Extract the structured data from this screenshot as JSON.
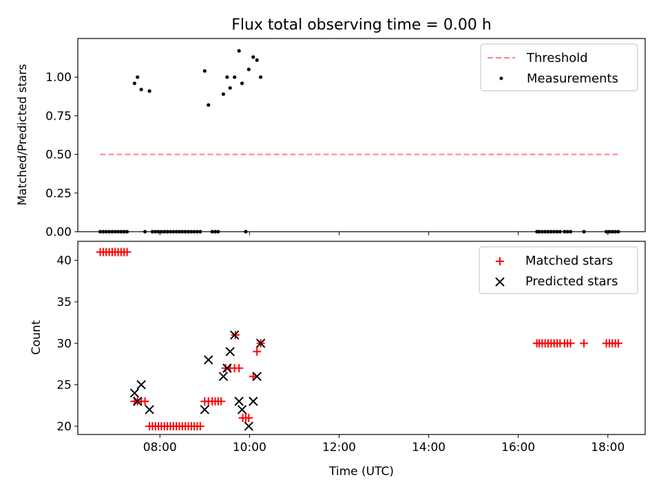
{
  "chart_data": [
    {
      "type": "scatter",
      "title": "Flux total observing time = 0.00 h",
      "xlabel": "",
      "ylabel": "Matched/Predicted stars",
      "xlim": [
        "06:10",
        "18:50"
      ],
      "ylim": [
        0,
        1.25
      ],
      "yticks": [
        0.0,
        0.25,
        0.5,
        0.75,
        1.0
      ],
      "ytick_labels": [
        "0.00",
        "0.25",
        "0.50",
        "0.75",
        "1.00"
      ],
      "legend_position": "top-right",
      "grid": false,
      "series": [
        {
          "name": "Threshold",
          "kind": "dashed-line",
          "color": "#ff7f7f",
          "x": [
            "06:40",
            "18:15"
          ],
          "y": [
            0.5,
            0.5
          ]
        },
        {
          "name": "Measurements",
          "kind": "dot",
          "color": "#000000",
          "points": [
            [
              "06:40",
              0
            ],
            [
              "06:44",
              0
            ],
            [
              "06:48",
              0
            ],
            [
              "06:52",
              0
            ],
            [
              "06:56",
              0
            ],
            [
              "07:00",
              0
            ],
            [
              "07:04",
              0
            ],
            [
              "07:08",
              0
            ],
            [
              "07:12",
              0
            ],
            [
              "07:16",
              0
            ],
            [
              "07:26",
              0.96
            ],
            [
              "07:30",
              1.0
            ],
            [
              "07:35",
              0.92
            ],
            [
              "07:40",
              0
            ],
            [
              "07:46",
              0.91
            ],
            [
              "07:50",
              0
            ],
            [
              "07:54",
              0
            ],
            [
              "07:58",
              0
            ],
            [
              "08:02",
              0
            ],
            [
              "08:06",
              0
            ],
            [
              "08:10",
              0
            ],
            [
              "08:14",
              0
            ],
            [
              "08:18",
              0
            ],
            [
              "08:22",
              0
            ],
            [
              "08:26",
              0
            ],
            [
              "08:30",
              0
            ],
            [
              "08:34",
              0
            ],
            [
              "08:38",
              0
            ],
            [
              "08:42",
              0
            ],
            [
              "08:46",
              0
            ],
            [
              "08:50",
              0
            ],
            [
              "08:54",
              0
            ],
            [
              "09:00",
              1.04
            ],
            [
              "09:05",
              0.82
            ],
            [
              "09:10",
              0
            ],
            [
              "09:14",
              0
            ],
            [
              "09:18",
              0
            ],
            [
              "09:25",
              0.89
            ],
            [
              "09:30",
              1.0
            ],
            [
              "09:34",
              0.93
            ],
            [
              "09:40",
              1.0
            ],
            [
              "09:46",
              1.17
            ],
            [
              "09:50",
              0.96
            ],
            [
              "09:55",
              0
            ],
            [
              "09:59",
              1.05
            ],
            [
              "10:05",
              1.13
            ],
            [
              "10:10",
              1.11
            ],
            [
              "10:15",
              1.0
            ],
            [
              "16:25",
              0
            ],
            [
              "16:28",
              0
            ],
            [
              "16:32",
              0
            ],
            [
              "16:36",
              0
            ],
            [
              "16:40",
              0
            ],
            [
              "16:44",
              0
            ],
            [
              "16:48",
              0
            ],
            [
              "16:52",
              0
            ],
            [
              "16:56",
              0
            ],
            [
              "17:02",
              0
            ],
            [
              "17:06",
              0
            ],
            [
              "17:10",
              0
            ],
            [
              "17:28",
              0
            ],
            [
              "17:58",
              0
            ],
            [
              "18:02",
              0
            ],
            [
              "18:06",
              0
            ],
            [
              "18:10",
              0
            ],
            [
              "18:14",
              0
            ]
          ]
        }
      ]
    },
    {
      "type": "scatter",
      "title": "",
      "xlabel": "Time (UTC)",
      "ylabel": "Count",
      "xlim": [
        "06:10",
        "18:50"
      ],
      "ylim": [
        19,
        42.3
      ],
      "xticks": [
        "08:00",
        "10:00",
        "12:00",
        "14:00",
        "16:00",
        "18:00"
      ],
      "yticks": [
        20,
        25,
        30,
        35,
        40
      ],
      "ytick_labels": [
        "20",
        "25",
        "30",
        "35",
        "40"
      ],
      "legend_position": "top-right",
      "grid": false,
      "series": [
        {
          "name": "Matched stars",
          "kind": "plus",
          "color": "#ff0000",
          "points": [
            [
              "06:40",
              41
            ],
            [
              "06:44",
              41
            ],
            [
              "06:48",
              41
            ],
            [
              "06:52",
              41
            ],
            [
              "06:56",
              41
            ],
            [
              "07:00",
              41
            ],
            [
              "07:04",
              41
            ],
            [
              "07:08",
              41
            ],
            [
              "07:12",
              41
            ],
            [
              "07:16",
              41
            ],
            [
              "07:26",
              23
            ],
            [
              "07:30",
              23
            ],
            [
              "07:35",
              23
            ],
            [
              "07:40",
              23
            ],
            [
              "07:46",
              20
            ],
            [
              "07:50",
              20
            ],
            [
              "07:54",
              20
            ],
            [
              "07:58",
              20
            ],
            [
              "08:02",
              20
            ],
            [
              "08:06",
              20
            ],
            [
              "08:10",
              20
            ],
            [
              "08:14",
              20
            ],
            [
              "08:18",
              20
            ],
            [
              "08:22",
              20
            ],
            [
              "08:26",
              20
            ],
            [
              "08:30",
              20
            ],
            [
              "08:34",
              20
            ],
            [
              "08:38",
              20
            ],
            [
              "08:42",
              20
            ],
            [
              "08:46",
              20
            ],
            [
              "08:50",
              20
            ],
            [
              "08:54",
              20
            ],
            [
              "09:00",
              23
            ],
            [
              "09:05",
              23
            ],
            [
              "09:10",
              23
            ],
            [
              "09:14",
              23
            ],
            [
              "09:18",
              23
            ],
            [
              "09:22",
              23
            ],
            [
              "09:28",
              27
            ],
            [
              "09:34",
              27
            ],
            [
              "09:40",
              27
            ],
            [
              "09:46",
              27
            ],
            [
              "09:41",
              31
            ],
            [
              "09:51",
              21
            ],
            [
              "09:55",
              21
            ],
            [
              "09:59",
              21
            ],
            [
              "10:05",
              26
            ],
            [
              "10:10",
              29
            ],
            [
              "10:15",
              30
            ],
            [
              "16:25",
              30
            ],
            [
              "16:28",
              30
            ],
            [
              "16:32",
              30
            ],
            [
              "16:36",
              30
            ],
            [
              "16:40",
              30
            ],
            [
              "16:44",
              30
            ],
            [
              "16:48",
              30
            ],
            [
              "16:52",
              30
            ],
            [
              "16:56",
              30
            ],
            [
              "17:02",
              30
            ],
            [
              "17:06",
              30
            ],
            [
              "17:10",
              30
            ],
            [
              "17:28",
              30
            ],
            [
              "17:58",
              30
            ],
            [
              "18:02",
              30
            ],
            [
              "18:06",
              30
            ],
            [
              "18:10",
              30
            ],
            [
              "18:14",
              30
            ]
          ]
        },
        {
          "name": "Predicted stars",
          "kind": "x",
          "color": "#000000",
          "points": [
            [
              "07:26",
              24
            ],
            [
              "07:30",
              23
            ],
            [
              "07:35",
              25
            ],
            [
              "07:46",
              22
            ],
            [
              "09:00",
              22
            ],
            [
              "09:05",
              28
            ],
            [
              "09:25",
              26
            ],
            [
              "09:30",
              27
            ],
            [
              "09:34",
              29
            ],
            [
              "09:40",
              31
            ],
            [
              "09:46",
              23
            ],
            [
              "09:50",
              22
            ],
            [
              "09:59",
              20
            ],
            [
              "10:05",
              23
            ],
            [
              "10:10",
              26
            ],
            [
              "10:15",
              30
            ]
          ]
        }
      ]
    }
  ]
}
